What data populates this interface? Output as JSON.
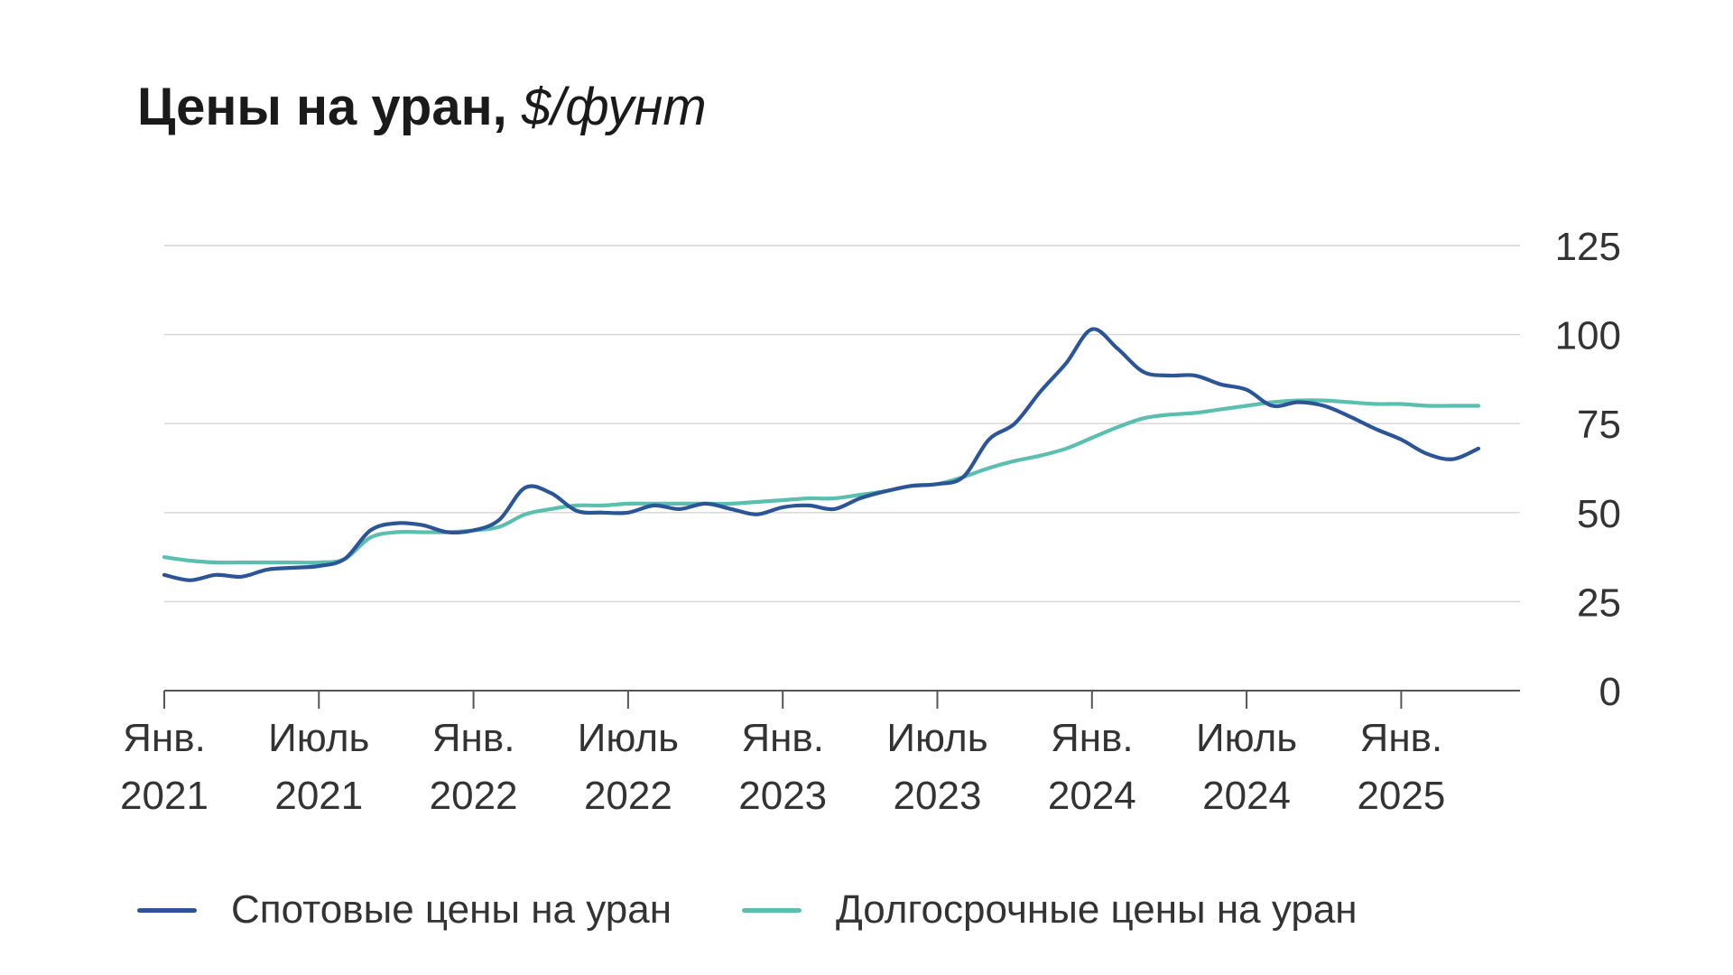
{
  "title": {
    "main": "Цены на уран, ",
    "unit": "$/фунт"
  },
  "colors": {
    "spot": "#2b5597",
    "long_term": "#5bbfb0",
    "grid": "#d4d4d4",
    "axis": "#555555"
  },
  "chart_data": {
    "type": "line",
    "title": "Цены на уран, $/фунт",
    "y_axis_position": "right",
    "ylim": [
      0,
      125
    ],
    "y_ticks": [
      0,
      25,
      50,
      75,
      100,
      125
    ],
    "x_ticks": [
      {
        "x": "2021-01",
        "line1": "Янв.",
        "line2": "2021"
      },
      {
        "x": "2021-07",
        "line1": "Июль",
        "line2": "2021"
      },
      {
        "x": "2022-01",
        "line1": "Янв.",
        "line2": "2022"
      },
      {
        "x": "2022-07",
        "line1": "Июль",
        "line2": "2022"
      },
      {
        "x": "2023-01",
        "line1": "Янв.",
        "line2": "2023"
      },
      {
        "x": "2023-07",
        "line1": "Июль",
        "line2": "2023"
      },
      {
        "x": "2024-01",
        "line1": "Янв.",
        "line2": "2024"
      },
      {
        "x": "2024-07",
        "line1": "Июль",
        "line2": "2024"
      },
      {
        "x": "2025-01",
        "line1": "Янв.",
        "line2": "2025"
      }
    ],
    "xlim": [
      "2021-01",
      "2025-06"
    ],
    "grid": true,
    "legend_position": "bottom",
    "series": [
      {
        "name": "Спотовые цены на уран",
        "color_key": "spot",
        "points": [
          [
            "2021-01",
            32.5
          ],
          [
            "2021-02",
            31
          ],
          [
            "2021-03",
            32.5
          ],
          [
            "2021-04",
            32
          ],
          [
            "2021-05",
            34
          ],
          [
            "2021-06",
            34.5
          ],
          [
            "2021-07",
            35
          ],
          [
            "2021-08",
            37
          ],
          [
            "2021-09",
            45
          ],
          [
            "2021-10",
            47
          ],
          [
            "2021-11",
            46.5
          ],
          [
            "2021-12",
            44.5
          ],
          [
            "2022-01",
            45
          ],
          [
            "2022-02",
            48
          ],
          [
            "2022-03",
            57
          ],
          [
            "2022-04",
            55.5
          ],
          [
            "2022-05",
            50.5
          ],
          [
            "2022-06",
            50
          ],
          [
            "2022-07",
            50
          ],
          [
            "2022-08",
            52
          ],
          [
            "2022-09",
            51
          ],
          [
            "2022-10",
            52.5
          ],
          [
            "2022-11",
            51
          ],
          [
            "2022-12",
            49.5
          ],
          [
            "2023-01",
            51.5
          ],
          [
            "2023-02",
            52
          ],
          [
            "2023-03",
            51
          ],
          [
            "2023-04",
            54
          ],
          [
            "2023-05",
            56
          ],
          [
            "2023-06",
            57.5
          ],
          [
            "2023-07",
            58
          ],
          [
            "2023-08",
            60
          ],
          [
            "2023-09",
            70.5
          ],
          [
            "2023-10",
            75
          ],
          [
            "2023-11",
            84
          ],
          [
            "2023-12",
            92
          ],
          [
            "2024-01",
            101.5
          ],
          [
            "2024-02",
            96
          ],
          [
            "2024-03",
            89.5
          ],
          [
            "2024-04",
            88.5
          ],
          [
            "2024-05",
            88.5
          ],
          [
            "2024-06",
            86
          ],
          [
            "2024-07",
            84.5
          ],
          [
            "2024-08",
            80
          ],
          [
            "2024-09",
            81
          ],
          [
            "2024-10",
            80
          ],
          [
            "2024-11",
            77
          ],
          [
            "2024-12",
            73.5
          ],
          [
            "2025-01",
            70.5
          ],
          [
            "2025-02",
            66.5
          ],
          [
            "2025-03",
            65
          ],
          [
            "2025-04",
            68
          ]
        ]
      },
      {
        "name": "Долгосрочные цены на уран",
        "color_key": "long_term",
        "points": [
          [
            "2021-01",
            37.5
          ],
          [
            "2021-02",
            36.5
          ],
          [
            "2021-03",
            36
          ],
          [
            "2021-04",
            36
          ],
          [
            "2021-05",
            36
          ],
          [
            "2021-06",
            36
          ],
          [
            "2021-07",
            36
          ],
          [
            "2021-08",
            37
          ],
          [
            "2021-09",
            43
          ],
          [
            "2021-10",
            44.5
          ],
          [
            "2021-11",
            44.5
          ],
          [
            "2021-12",
            44.5
          ],
          [
            "2022-01",
            45
          ],
          [
            "2022-02",
            46
          ],
          [
            "2022-03",
            49.5
          ],
          [
            "2022-04",
            51
          ],
          [
            "2022-05",
            52
          ],
          [
            "2022-06",
            52
          ],
          [
            "2022-07",
            52.5
          ],
          [
            "2022-08",
            52.5
          ],
          [
            "2022-09",
            52.5
          ],
          [
            "2022-10",
            52.5
          ],
          [
            "2022-11",
            52.5
          ],
          [
            "2022-12",
            53
          ],
          [
            "2023-01",
            53.5
          ],
          [
            "2023-02",
            54
          ],
          [
            "2023-03",
            54
          ],
          [
            "2023-04",
            55
          ],
          [
            "2023-05",
            56
          ],
          [
            "2023-06",
            57.5
          ],
          [
            "2023-07",
            58
          ],
          [
            "2023-08",
            60
          ],
          [
            "2023-09",
            62.5
          ],
          [
            "2023-10",
            64.5
          ],
          [
            "2023-11",
            66
          ],
          [
            "2023-12",
            68
          ],
          [
            "2024-01",
            71
          ],
          [
            "2024-02",
            74
          ],
          [
            "2024-03",
            76.5
          ],
          [
            "2024-04",
            77.5
          ],
          [
            "2024-05",
            78
          ],
          [
            "2024-06",
            79
          ],
          [
            "2024-07",
            80
          ],
          [
            "2024-08",
            81
          ],
          [
            "2024-09",
            81.5
          ],
          [
            "2024-10",
            81.5
          ],
          [
            "2024-11",
            81
          ],
          [
            "2024-12",
            80.5
          ],
          [
            "2025-01",
            80.5
          ],
          [
            "2025-02",
            80
          ],
          [
            "2025-03",
            80
          ],
          [
            "2025-04",
            80
          ]
        ]
      }
    ]
  }
}
